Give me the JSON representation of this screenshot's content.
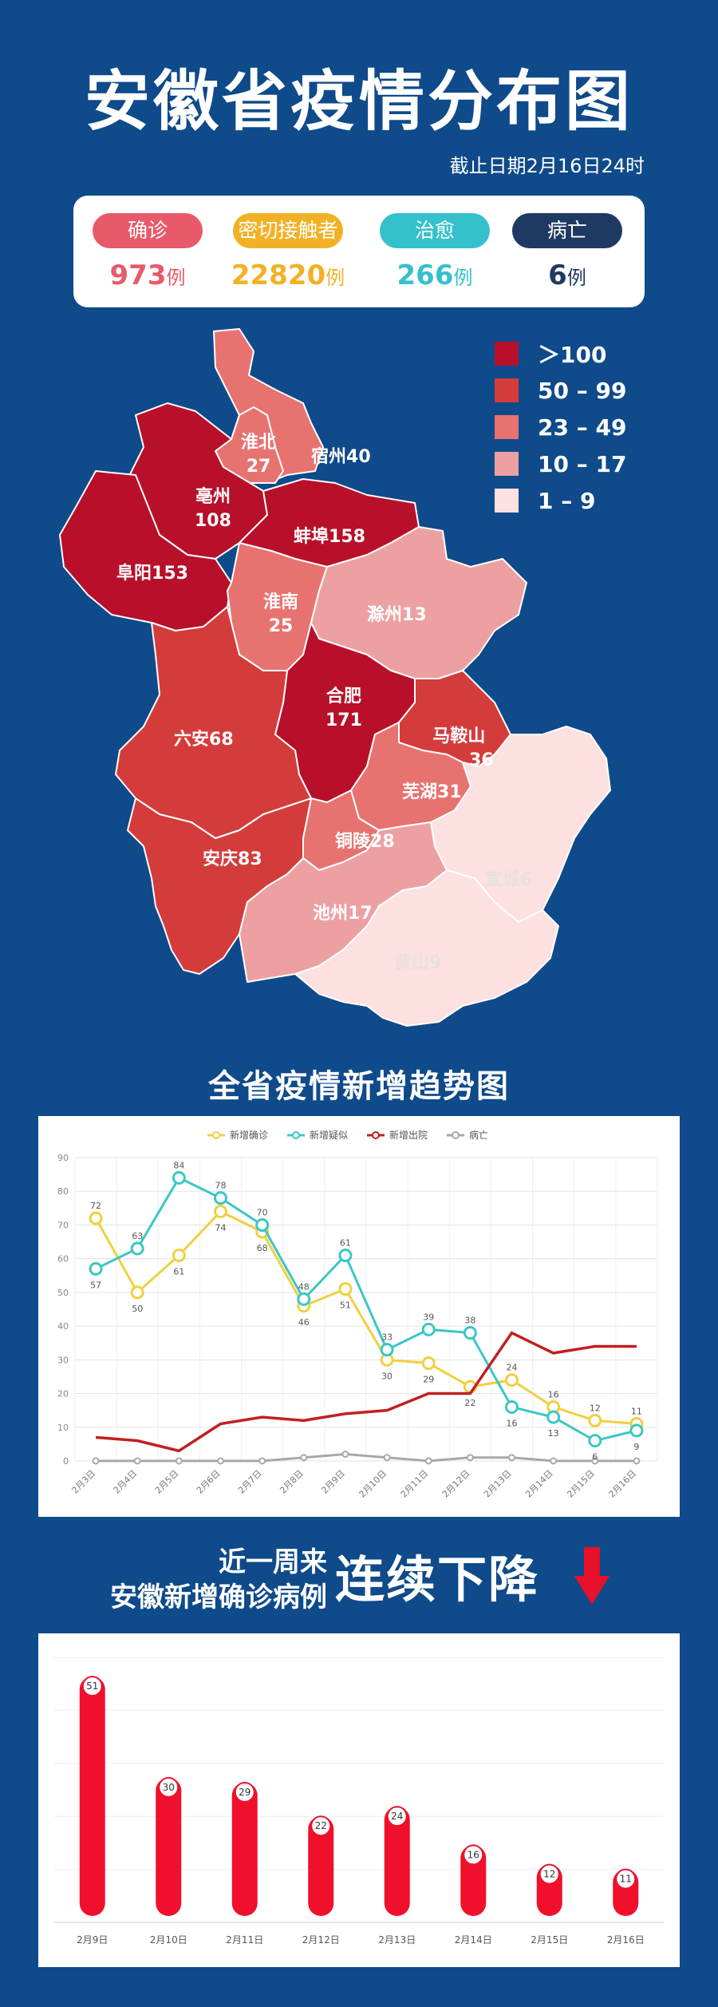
{
  "title": "安徽省疫情分布图",
  "subtitle": "截止日期2月16日24时",
  "stats": [
    {
      "label": "确诊",
      "value": "973",
      "unit": "例",
      "color": "#e85a6a"
    },
    {
      "label": "密切接触者",
      "value": "22820",
      "unit": "例",
      "color": "#f2b125"
    },
    {
      "label": "治愈",
      "value": "266",
      "unit": "例",
      "color": "#35c1cc"
    },
    {
      "label": "病亡",
      "value": "6",
      "unit": "例",
      "color": "#1e3a63"
    }
  ],
  "legend": [
    {
      "label": "＞100",
      "color": "#b8102a"
    },
    {
      "label": "50 – 99",
      "color": "#d43c3c"
    },
    {
      "label": "23 – 49",
      "color": "#e77371"
    },
    {
      "label": "10 – 17",
      "color": "#eda0a2"
    },
    {
      "label": "1 – 9",
      "color": "#fde0e0"
    }
  ],
  "map_regions": [
    {
      "name": "淮北",
      "count": "27"
    },
    {
      "name": "宿州",
      "count": "40"
    },
    {
      "name": "亳州",
      "count": "108"
    },
    {
      "name": "蚌埠",
      "count": "158"
    },
    {
      "name": "阜阳",
      "count": "153"
    },
    {
      "name": "淮南",
      "count": "25"
    },
    {
      "name": "滁州",
      "count": "13"
    },
    {
      "name": "合肥",
      "count": "171"
    },
    {
      "name": "六安",
      "count": "68"
    },
    {
      "name": "马鞍山",
      "count": "36"
    },
    {
      "name": "芜湖",
      "count": "31"
    },
    {
      "name": "铜陵",
      "count": "28"
    },
    {
      "name": "安庆",
      "count": "83"
    },
    {
      "name": "宣城",
      "count": "6"
    },
    {
      "name": "池州",
      "count": "17"
    },
    {
      "name": "黄山",
      "count": "9"
    }
  ],
  "trend_title": "全省疫情新增趋势图",
  "decline_heading_line1": "近一周来",
  "decline_heading_line2": "安徽新增确诊病例",
  "decline_heading_emphasis": "连续下降",
  "chart_data": [
    {
      "type": "line",
      "title": "",
      "x": [
        "2月3日",
        "2月4日",
        "2月5日",
        "2月6日",
        "2月7日",
        "2月8日",
        "2月9日",
        "2月10日",
        "2月11日",
        "2月12日",
        "2月13日",
        "2月14日",
        "2月15日",
        "2月16日"
      ],
      "ylim": [
        0,
        90
      ],
      "yticks": [
        0,
        10,
        20,
        30,
        40,
        50,
        60,
        70,
        80,
        90
      ],
      "grid": true,
      "legend_position": "top",
      "series": [
        {
          "name": "新增确诊",
          "color": "#f0d040",
          "values": [
            72,
            50,
            61,
            74,
            68,
            46,
            51,
            30,
            29,
            22,
            24,
            16,
            12,
            11
          ]
        },
        {
          "name": "新增疑似",
          "color": "#3cc6c6",
          "values": [
            57,
            63,
            84,
            78,
            70,
            48,
            61,
            33,
            39,
            38,
            16,
            13,
            6,
            9
          ]
        },
        {
          "name": "新增出院",
          "color": "#c11f22",
          "values": [
            7,
            6,
            3,
            11,
            13,
            12,
            14,
            15,
            20,
            20,
            38,
            32,
            34,
            34
          ]
        },
        {
          "name": "病亡",
          "color": "#a8a8a8",
          "values": [
            0,
            0,
            0,
            0,
            0,
            1,
            2,
            1,
            0,
            1,
            1,
            0,
            0,
            0
          ]
        }
      ],
      "point_labels": {
        "新增确诊": [
          "72",
          "50",
          "61",
          "74",
          "68",
          "46",
          "51",
          "30",
          "29",
          "22",
          "24",
          "16",
          "12",
          "11"
        ],
        "新增疑似": [
          "57",
          "63",
          "84",
          "78",
          "70",
          "48",
          "61",
          "33",
          "39",
          "38",
          "16",
          "13",
          "6",
          "9"
        ]
      }
    },
    {
      "type": "bar",
      "title": "",
      "categories": [
        "2月9日",
        "2月10日",
        "2月11日",
        "2月12日",
        "2月13日",
        "2月14日",
        "2月15日",
        "2月16日"
      ],
      "values": [
        51,
        30,
        29,
        22,
        24,
        16,
        12,
        11
      ],
      "ylim": [
        0,
        55
      ],
      "grid": true,
      "bar_color": "#f0102c"
    }
  ]
}
